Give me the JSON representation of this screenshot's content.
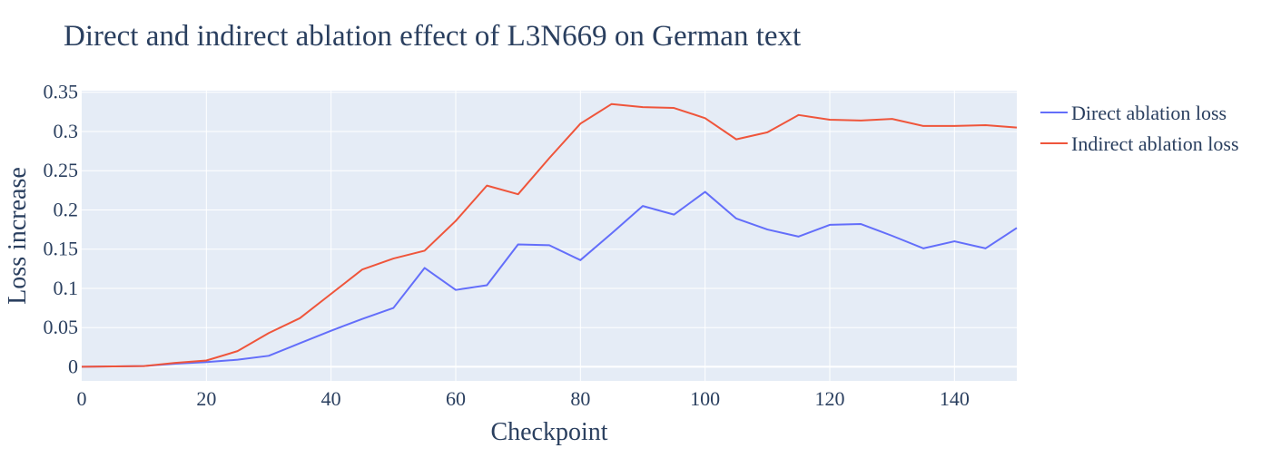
{
  "chart_data": {
    "type": "line",
    "title": "Direct and indirect ablation effect of L3N669 on German text",
    "xlabel": "Checkpoint",
    "ylabel": "Loss increase",
    "xlim": [
      0,
      150
    ],
    "ylim": [
      -0.018,
      0.352
    ],
    "x_ticks": [
      0,
      20,
      40,
      60,
      80,
      100,
      120,
      140
    ],
    "y_ticks": [
      0,
      0.05,
      0.1,
      0.15,
      0.2,
      0.25,
      0.3,
      0.35
    ],
    "x_tick_labels": [
      "0",
      "20",
      "40",
      "60",
      "80",
      "100",
      "120",
      "140"
    ],
    "y_tick_labels": [
      "0",
      "0.05",
      "0.1",
      "0.15",
      "0.2",
      "0.25",
      "0.3",
      "0.35"
    ],
    "grid": true,
    "legend_position": "top-right, outside plot",
    "plot_background": "#e5ecf6",
    "x": [
      0,
      5,
      10,
      15,
      20,
      25,
      30,
      35,
      40,
      45,
      50,
      55,
      60,
      65,
      70,
      75,
      80,
      85,
      90,
      95,
      100,
      105,
      110,
      115,
      120,
      125,
      130,
      135,
      140,
      145,
      150
    ],
    "series": [
      {
        "name": "Direct ablation loss",
        "color": "#636efa",
        "values": [
          0.0,
          0.0005,
          0.001,
          0.004,
          0.006,
          0.009,
          0.014,
          0.03,
          0.046,
          0.061,
          0.075,
          0.126,
          0.098,
          0.104,
          0.156,
          0.155,
          0.136,
          0.17,
          0.205,
          0.194,
          0.223,
          0.189,
          0.175,
          0.166,
          0.181,
          0.182,
          0.167,
          0.151,
          0.16,
          0.151,
          0.177
        ]
      },
      {
        "name": "Indirect ablation loss",
        "color": "#ef553b",
        "values": [
          0.0,
          0.0005,
          0.001,
          0.005,
          0.008,
          0.02,
          0.043,
          0.062,
          0.093,
          0.124,
          0.138,
          0.148,
          0.186,
          0.231,
          0.22,
          0.266,
          0.31,
          0.335,
          0.331,
          0.33,
          0.317,
          0.29,
          0.299,
          0.321,
          0.315,
          0.314,
          0.316,
          0.307,
          0.307,
          0.308,
          0.305
        ]
      }
    ]
  }
}
